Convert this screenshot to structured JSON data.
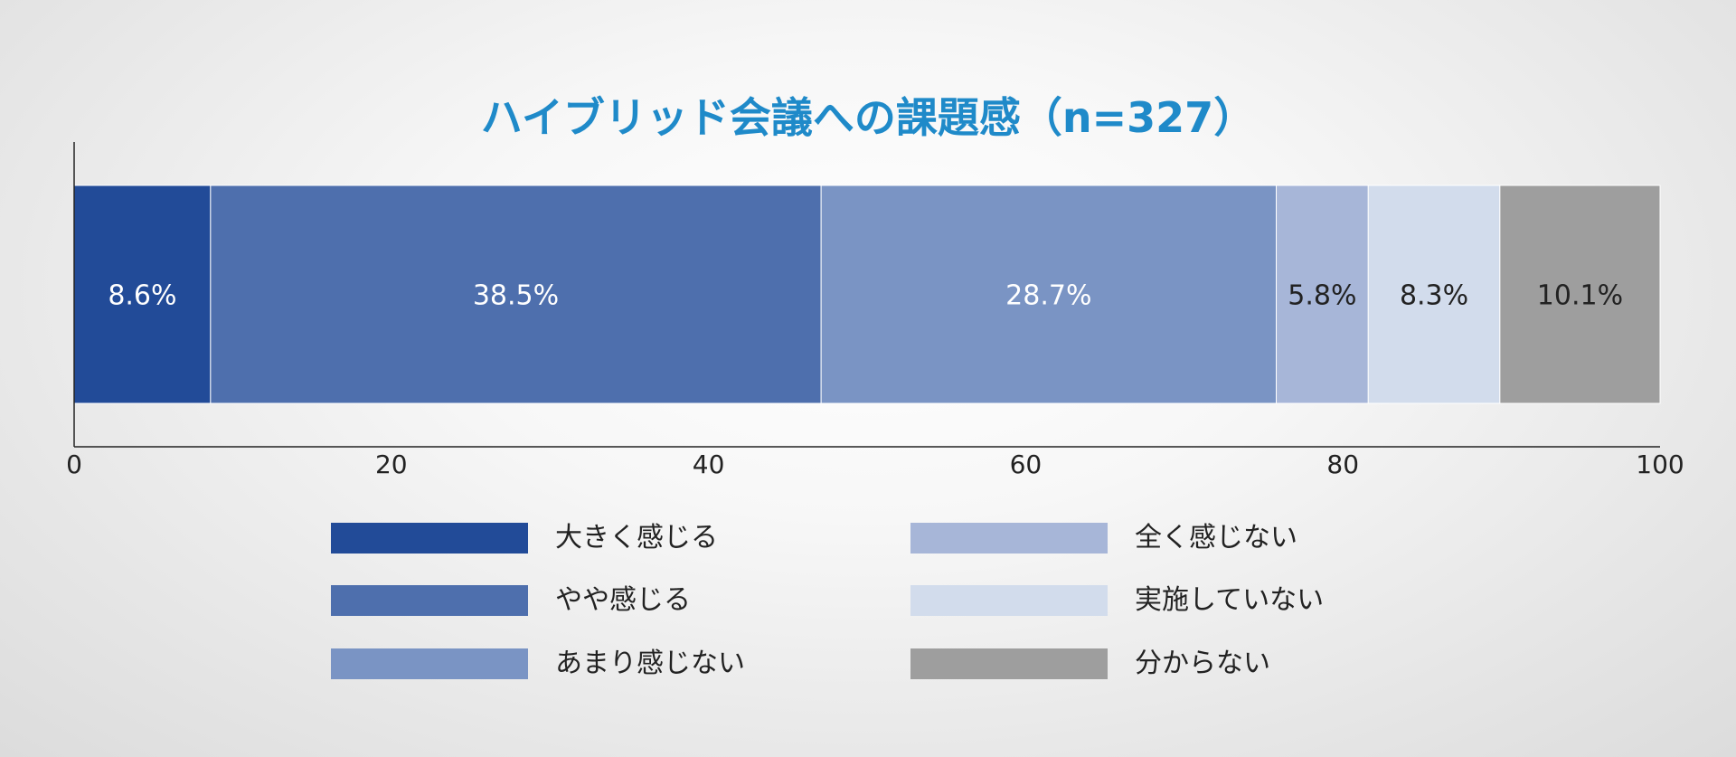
{
  "chart_data": {
    "type": "bar",
    "orientation": "horizontal",
    "stacked": true,
    "title": "ハイブリッド会議への課題感（n=327）",
    "title_color": "#1f8ac9",
    "xlim": [
      0,
      100
    ],
    "xticks": [
      "0",
      "20",
      "40",
      "60",
      "80",
      "100"
    ],
    "xlabel": "",
    "ylabel": "",
    "grid": false,
    "legend_position": "bottom",
    "series": [
      {
        "name": "大きく感じる",
        "value": 8.6,
        "label": "8.6%",
        "color": "#224b98",
        "label_color": "#ffffff"
      },
      {
        "name": "やや感じる",
        "value": 38.5,
        "label": "38.5%",
        "color": "#4e6fad",
        "label_color": "#ffffff"
      },
      {
        "name": "あまり感じない",
        "value": 28.7,
        "label": "28.7%",
        "color": "#7a94c4",
        "label_color": "#ffffff"
      },
      {
        "name": "全く感じない",
        "value": 5.8,
        "label": "5.8%",
        "color": "#a7b6d8",
        "label_color": "#222222"
      },
      {
        "name": "実施していない",
        "value": 8.3,
        "label": "8.3%",
        "color": "#d2dcec",
        "label_color": "#222222"
      },
      {
        "name": "分からない",
        "value": 10.1,
        "label": "10.1%",
        "color": "#9e9e9e",
        "label_color": "#222222"
      }
    ]
  }
}
